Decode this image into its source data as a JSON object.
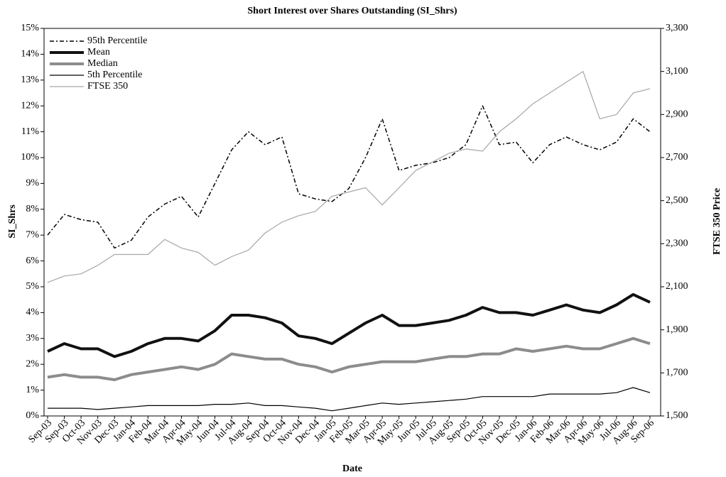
{
  "chart_data": {
    "type": "line",
    "title": "Short Interest over Shares Outstanding (SI_Shrs)",
    "x_label": "Date",
    "y_label": "SI_Shrs",
    "y2_label": "FTSE 350 Price",
    "categories": [
      "Sep-03",
      "Sep-03",
      "Oct-03",
      "Nov-03",
      "Dec-03",
      "Jan-04",
      "Feb-04",
      "Mar-04",
      "Apr-04",
      "May-04",
      "Jun-04",
      "Jul-04",
      "Aug-04",
      "Sep-04",
      "Oct-04",
      "Nov-04",
      "Dec-04",
      "Jan-05",
      "Feb-05",
      "Mar-05",
      "Apr-05",
      "May-05",
      "Jun-05",
      "Jul-05",
      "Aug-05",
      "Sep-05",
      "Oct-05",
      "Nov-05",
      "Dec-05",
      "Jan-06",
      "Feb-06",
      "Mar-06",
      "Apr-06",
      "May-06",
      "Jul-06",
      "Aug-06",
      "Sep-06"
    ],
    "ylim": [
      0,
      15
    ],
    "yticks": [
      {
        "value": 0,
        "label": "0%"
      },
      {
        "value": 1,
        "label": "1%"
      },
      {
        "value": 2,
        "label": "2%"
      },
      {
        "value": 3,
        "label": "3%"
      },
      {
        "value": 4,
        "label": "4%"
      },
      {
        "value": 5,
        "label": "5%"
      },
      {
        "value": 6,
        "label": "6%"
      },
      {
        "value": 7,
        "label": "7%"
      },
      {
        "value": 8,
        "label": "8%"
      },
      {
        "value": 9,
        "label": "9%"
      },
      {
        "value": 10,
        "label": "10%"
      },
      {
        "value": 11,
        "label": "11%"
      },
      {
        "value": 12,
        "label": "12%"
      },
      {
        "value": 13,
        "label": "13%"
      },
      {
        "value": 14,
        "label": "14%"
      },
      {
        "value": 15,
        "label": "15%"
      }
    ],
    "y2lim": [
      1500,
      3300
    ],
    "y2ticks": [
      {
        "value": 1500,
        "label": "1,500"
      },
      {
        "value": 1700,
        "label": "1,700"
      },
      {
        "value": 1900,
        "label": "1,900"
      },
      {
        "value": 2100,
        "label": "2,100"
      },
      {
        "value": 2300,
        "label": "2,300"
      },
      {
        "value": 2500,
        "label": "2,500"
      },
      {
        "value": 2700,
        "label": "2,700"
      },
      {
        "value": 2900,
        "label": "2,900"
      },
      {
        "value": 3100,
        "label": "3,100"
      },
      {
        "value": 3300,
        "label": "3,300"
      }
    ],
    "legend": "top-left",
    "series": [
      {
        "name": "95th Percentile",
        "color": "#000000",
        "dash": "dashdot",
        "values": [
          7.0,
          7.8,
          7.6,
          7.5,
          6.5,
          6.8,
          7.7,
          8.2,
          8.5,
          7.7,
          9.0,
          10.3,
          11.0,
          10.5,
          10.8,
          8.6,
          8.4,
          8.3,
          8.8,
          10.0,
          11.5,
          9.5,
          9.7,
          9.8,
          10.0,
          10.5,
          12.0,
          10.5,
          10.6,
          9.8,
          10.5,
          10.8,
          10.5,
          10.3,
          10.6,
          11.5,
          11.0
        ]
      },
      {
        "name": "Mean",
        "color": "#111111",
        "values": [
          2.5,
          2.8,
          2.6,
          2.6,
          2.3,
          2.5,
          2.8,
          3.0,
          3.0,
          2.9,
          3.3,
          3.9,
          3.9,
          3.8,
          3.6,
          3.1,
          3.0,
          2.8,
          3.2,
          3.6,
          3.9,
          3.5,
          3.5,
          3.6,
          3.7,
          3.9,
          4.2,
          4.0,
          4.0,
          3.9,
          4.1,
          4.3,
          4.1,
          4.0,
          4.3,
          4.7,
          4.4
        ]
      },
      {
        "name": "Median",
        "color": "#8c8c8c",
        "values": [
          1.5,
          1.6,
          1.5,
          1.5,
          1.4,
          1.6,
          1.7,
          1.8,
          1.9,
          1.8,
          2.0,
          2.4,
          2.3,
          2.2,
          2.2,
          2.0,
          1.9,
          1.7,
          1.9,
          2.0,
          2.1,
          2.1,
          2.1,
          2.2,
          2.3,
          2.3,
          2.4,
          2.4,
          2.6,
          2.5,
          2.6,
          2.7,
          2.6,
          2.6,
          2.8,
          3.0,
          2.8
        ]
      },
      {
        "name": "5th Percentile",
        "color": "#000000",
        "values": [
          0.3,
          0.3,
          0.3,
          0.25,
          0.3,
          0.35,
          0.4,
          0.4,
          0.4,
          0.4,
          0.45,
          0.45,
          0.5,
          0.4,
          0.4,
          0.35,
          0.3,
          0.2,
          0.3,
          0.4,
          0.5,
          0.45,
          0.5,
          0.55,
          0.6,
          0.65,
          0.75,
          0.75,
          0.75,
          0.75,
          0.85,
          0.85,
          0.85,
          0.85,
          0.9,
          1.1,
          0.9
        ]
      },
      {
        "name": "FTSE 350",
        "color": "#a6a6a6",
        "axis": "y2",
        "values": [
          2120,
          2150,
          2160,
          2200,
          2250,
          2250,
          2250,
          2320,
          2280,
          2260,
          2200,
          2240,
          2270,
          2350,
          2400,
          2430,
          2450,
          2520,
          2540,
          2560,
          2480,
          2560,
          2640,
          2680,
          2720,
          2740,
          2730,
          2820,
          2880,
          2950,
          3000,
          3050,
          3100,
          2880,
          2900,
          3000,
          3020
        ]
      }
    ]
  }
}
